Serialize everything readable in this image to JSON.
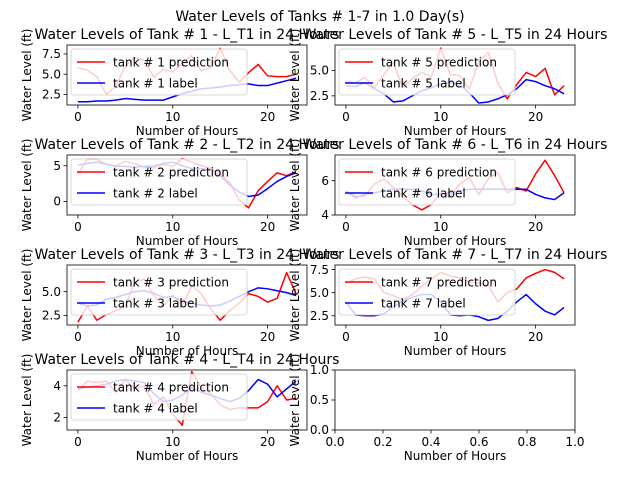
{
  "chart_data": {
    "type": "line",
    "suptitle": "Water Levels of Tanks # 1-7 in 1.0 Day(s)",
    "colors": {
      "prediction": "#ff0000",
      "label": "#0000ff"
    },
    "panels": [
      {
        "title": "Water Levels of Tank # 1 - L_T1 in 24 Hours",
        "xlabel": "Number of Hours",
        "ylabel": "Water Level (ft)",
        "xlim": [
          -1.15,
          24.15
        ],
        "ylim": [
          1.2,
          8.6
        ],
        "xticks": [
          0,
          10,
          20
        ],
        "yticks": [
          2.5,
          5.0,
          7.5
        ],
        "ytick_labels": [
          "2.5",
          "5.0",
          "7.5"
        ],
        "legend": "upper left",
        "series": [
          {
            "name": "tank # 1 prediction",
            "role": "prediction",
            "values": [
              5.8,
              5.5,
              4.7,
              2.5,
              3.5,
              6.0,
              7.0,
              6.7,
              4.6,
              5.6,
              5.3,
              6.3,
              7.3,
              5.4,
              5.8,
              8.2,
              5.5,
              4.0,
              5.2,
              6.2,
              4.8,
              4.7,
              4.7,
              5.0
            ]
          },
          {
            "name": "tank # 1 label",
            "role": "label",
            "values": [
              1.6,
              1.6,
              1.7,
              1.7,
              1.8,
              2.0,
              1.9,
              1.8,
              1.8,
              1.8,
              2.2,
              2.6,
              2.9,
              3.2,
              3.3,
              3.4,
              3.6,
              3.7,
              3.8,
              3.6,
              3.6,
              3.9,
              4.2,
              4.5
            ]
          }
        ]
      },
      {
        "title": "Water Levels of Tank # 5 - L_T5 in 24 Hours",
        "xlabel": "Number of Hours",
        "ylabel": "Water Level (ft)",
        "xlim": [
          -1.15,
          24.15
        ],
        "ylim": [
          1.6,
          7.5
        ],
        "xticks": [
          0,
          10,
          20
        ],
        "yticks": [
          2.5,
          5.0
        ],
        "ytick_labels": [
          "2.5",
          "5.0"
        ],
        "legend": "upper left",
        "series": [
          {
            "name": "tank # 5 prediction",
            "role": "prediction",
            "values": [
              3.9,
              3.8,
              4.3,
              3.3,
              4.6,
              5.8,
              3.3,
              4.2,
              4.8,
              4.4,
              7.2,
              4.6,
              4.5,
              3.2,
              5.8,
              6.8,
              3.8,
              2.2,
              3.6,
              4.8,
              4.4,
              5.2,
              2.6,
              3.5
            ]
          },
          {
            "name": "tank # 5 label",
            "role": "label",
            "values": [
              3.5,
              3.4,
              3.8,
              3.2,
              2.7,
              1.9,
              2.0,
              2.5,
              3.0,
              3.3,
              3.7,
              3.8,
              3.6,
              2.8,
              1.8,
              1.9,
              2.2,
              2.6,
              3.2,
              4.1,
              3.9,
              3.5,
              3.2,
              2.7
            ]
          }
        ]
      },
      {
        "title": "Water Levels of Tank # 2 - L_T2 in 24 Hours",
        "xlabel": "Number of Hours",
        "ylabel": "Water Level (ft)",
        "xlim": [
          -1.15,
          24.15
        ],
        "ylim": [
          -1.9,
          6.5
        ],
        "xticks": [
          0,
          10,
          20
        ],
        "yticks": [
          0,
          5
        ],
        "ytick_labels": [
          "0",
          "5"
        ],
        "legend": "upper left",
        "series": [
          {
            "name": "tank # 2 prediction",
            "role": "prediction",
            "values": [
              3.8,
              5.9,
              5.9,
              5.2,
              5.0,
              5.6,
              5.3,
              4.8,
              4.7,
              5.2,
              4.9,
              6.0,
              5.5,
              5.0,
              4.6,
              4.0,
              2.6,
              0.2,
              -0.9,
              1.5,
              2.8,
              4.0,
              3.6,
              4.2
            ]
          },
          {
            "name": "tank # 2 label",
            "role": "label",
            "values": [
              5.1,
              5.3,
              5.5,
              5.2,
              4.9,
              4.9,
              4.8,
              4.9,
              5.0,
              5.3,
              5.5,
              5.0,
              4.6,
              4.6,
              4.4,
              3.6,
              2.3,
              1.3,
              0.7,
              0.9,
              1.8,
              2.8,
              3.5,
              4.0
            ]
          }
        ]
      },
      {
        "title": "Water Levels of Tank # 6 - L_T6 in 24 Hours",
        "xlabel": "Number of Hours",
        "ylabel": "Water Level (ft)",
        "xlim": [
          -1.15,
          24.15
        ],
        "ylim": [
          4.0,
          7.5
        ],
        "xticks": [
          0,
          10,
          20
        ],
        "yticks": [
          4,
          6
        ],
        "ytick_labels": [
          "4",
          "6"
        ],
        "legend": "upper left",
        "series": [
          {
            "name": "tank # 6 prediction",
            "role": "prediction",
            "values": [
              5.4,
              5.1,
              5.1,
              5.8,
              6.1,
              5.6,
              5.1,
              4.6,
              4.3,
              4.6,
              5.3,
              5.1,
              5.8,
              6.2,
              5.2,
              6.1,
              6.5,
              5.3,
              5.6,
              5.4,
              6.4,
              7.2,
              6.3,
              5.3
            ]
          },
          {
            "name": "tank # 6 label",
            "role": "label",
            "values": [
              5.4,
              5.0,
              5.2,
              5.3,
              5.4,
              5.5,
              5.5,
              5.5,
              5.4,
              5.2,
              5.2,
              5.3,
              5.4,
              5.5,
              5.5,
              5.5,
              5.5,
              5.5,
              5.5,
              5.5,
              5.2,
              5.0,
              4.9,
              5.3
            ]
          }
        ]
      },
      {
        "title": "Water Levels of Tank # 3 - L_T3 in 24 Hours",
        "xlabel": "Number of Hours",
        "ylabel": "Water Level (ft)",
        "xlim": [
          -1.15,
          24.15
        ],
        "ylim": [
          1.5,
          7.8
        ],
        "xticks": [
          0,
          10,
          20
        ],
        "yticks": [
          2.5,
          5.0
        ],
        "ytick_labels": [
          "2.5",
          "5.0"
        ],
        "legend": "upper left",
        "series": [
          {
            "name": "tank # 3 prediction",
            "role": "prediction",
            "values": [
              1.8,
              3.5,
              2.0,
              2.6,
              3.0,
              3.5,
              6.0,
              6.3,
              4.6,
              3.5,
              4.6,
              3.6,
              5.6,
              4.8,
              3.2,
              2.0,
              3.0,
              3.8,
              4.8,
              4.5,
              3.9,
              4.3,
              7.0,
              4.8
            ]
          },
          {
            "name": "tank # 3 label",
            "role": "label",
            "values": [
              3.8,
              3.5,
              3.6,
              4.2,
              4.4,
              4.7,
              5.0,
              5.1,
              4.8,
              4.4,
              4.5,
              4.0,
              3.8,
              3.6,
              3.5,
              3.6,
              4.0,
              4.5,
              5.0,
              5.4,
              5.3,
              5.1,
              4.9,
              4.6
            ]
          }
        ]
      },
      {
        "title": "Water Levels of Tank # 7 - L_T7 in 24 Hours",
        "xlabel": "Number of Hours",
        "ylabel": "Water Level (ft)",
        "xlim": [
          -1.15,
          24.15
        ],
        "ylim": [
          1.5,
          8.0
        ],
        "xticks": [
          0,
          10,
          20
        ],
        "yticks": [
          2.5,
          5.0,
          7.5
        ],
        "ytick_labels": [
          "2.5",
          "5.0",
          "7.5"
        ],
        "legend": "upper left",
        "series": [
          {
            "name": "tank # 7 prediction",
            "role": "prediction",
            "values": [
              6.0,
              6.5,
              6.7,
              6.5,
              5.0,
              4.7,
              4.2,
              4.8,
              5.7,
              6.5,
              7.2,
              6.8,
              6.6,
              6.2,
              6.0,
              5.8,
              4.0,
              5.0,
              5.4,
              6.6,
              7.1,
              7.5,
              7.2,
              6.5
            ]
          },
          {
            "name": "tank # 7 label",
            "role": "label",
            "values": [
              4.0,
              2.6,
              2.5,
              2.5,
              2.7,
              3.5,
              4.1,
              4.5,
              4.8,
              4.8,
              4.0,
              2.6,
              2.5,
              2.6,
              2.4,
              2.0,
              2.2,
              3.0,
              4.0,
              4.8,
              3.8,
              3.0,
              2.6,
              3.4
            ]
          }
        ]
      },
      {
        "title": "Water Levels of Tank # 4 - L_T4 in 24 Hours",
        "xlabel": "Number of Hours",
        "ylabel": "Water Level (ft)",
        "xlim": [
          -1.15,
          24.15
        ],
        "ylim": [
          1.2,
          5.0
        ],
        "xticks": [
          0,
          10,
          20
        ],
        "yticks": [
          2,
          4
        ],
        "ytick_labels": [
          "2",
          "4"
        ],
        "legend": "upper left",
        "series": [
          {
            "name": "tank # 4 prediction",
            "role": "prediction",
            "values": [
              3.7,
              4.3,
              4.2,
              4.3,
              3.6,
              4.4,
              3.8,
              4.0,
              2.8,
              3.3,
              2.2,
              1.5,
              4.9,
              3.9,
              3.5,
              2.8,
              2.5,
              2.6,
              2.6,
              2.6,
              3.0,
              4.0,
              3.1,
              3.2
            ]
          },
          {
            "name": "tank # 4 label",
            "role": "label",
            "values": [
              3.8,
              3.9,
              4.0,
              4.1,
              4.3,
              4.4,
              4.3,
              4.2,
              3.5,
              3.0,
              3.1,
              3.4,
              3.9,
              3.6,
              3.4,
              3.2,
              3.0,
              3.2,
              3.7,
              4.4,
              4.1,
              3.3,
              3.8,
              4.3
            ]
          }
        ]
      },
      {
        "title": "",
        "xlabel": "Number of Hours",
        "ylabel": "Water Level (ft)",
        "xlim": [
          0,
          1
        ],
        "ylim": [
          0,
          1
        ],
        "xticks": [
          0,
          0.2,
          0.4,
          0.6,
          0.8,
          1.0
        ],
        "xtick_labels": [
          "0.0",
          "0.2",
          "0.4",
          "0.6",
          "0.8",
          "1.0"
        ],
        "yticks": [
          0,
          0.5,
          1.0
        ],
        "ytick_labels": [
          "0.0",
          "0.5",
          "1.0"
        ],
        "legend": "none",
        "series": []
      }
    ]
  }
}
